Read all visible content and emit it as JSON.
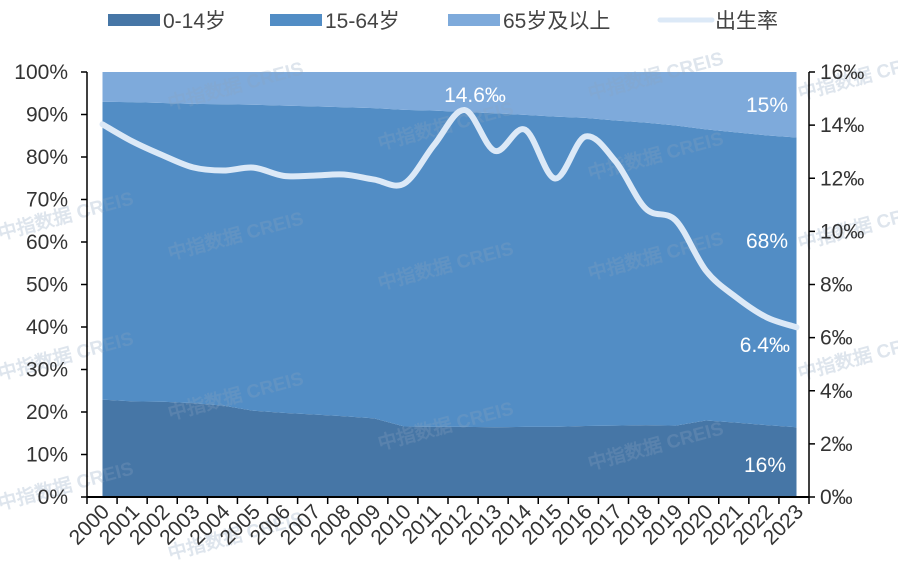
{
  "chart_data": {
    "type": "area",
    "stacked_percent": true,
    "categories": [
      "2000",
      "2001",
      "2002",
      "2003",
      "2004",
      "2005",
      "2006",
      "2007",
      "2008",
      "2009",
      "2010",
      "2011",
      "2012",
      "2013",
      "2014",
      "2015",
      "2016",
      "2017",
      "2018",
      "2019",
      "2020",
      "2021",
      "2022",
      "2023"
    ],
    "series": [
      {
        "name": "0-14岁",
        "type": "area",
        "axis": "left",
        "color": "#4676a6",
        "values": [
          22.9,
          22.5,
          22.4,
          22.1,
          21.5,
          20.3,
          19.8,
          19.4,
          19.0,
          18.5,
          16.6,
          16.5,
          16.5,
          16.4,
          16.5,
          16.5,
          16.7,
          16.8,
          16.9,
          16.8,
          18.0,
          17.5,
          16.9,
          16.4
        ]
      },
      {
        "name": "15-64岁",
        "type": "area",
        "axis": "left",
        "color": "#528dc5",
        "values": [
          70.1,
          70.4,
          70.3,
          70.4,
          70.9,
          72.0,
          72.3,
          72.5,
          72.7,
          73.0,
          74.5,
          74.4,
          74.1,
          73.9,
          73.4,
          73.0,
          72.5,
          71.8,
          71.2,
          70.6,
          68.5,
          68.3,
          68.2,
          68.2
        ]
      },
      {
        "name": "65岁及以上",
        "type": "area",
        "axis": "left",
        "color": "#7eaadb",
        "values": [
          7.0,
          7.1,
          7.3,
          7.5,
          7.6,
          7.7,
          7.9,
          8.1,
          8.3,
          8.5,
          8.9,
          9.1,
          9.4,
          9.7,
          10.1,
          10.5,
          10.8,
          11.4,
          11.9,
          12.6,
          13.5,
          14.2,
          14.9,
          15.4
        ]
      },
      {
        "name": "出生率",
        "type": "line",
        "axis": "right",
        "color": "#dce9f7",
        "values": [
          14.03,
          13.38,
          12.86,
          12.41,
          12.29,
          12.4,
          12.09,
          12.1,
          12.14,
          11.95,
          11.8,
          13.27,
          14.57,
          13.03,
          13.83,
          11.99,
          13.57,
          12.64,
          10.86,
          10.41,
          8.52,
          7.52,
          6.77,
          6.39
        ]
      }
    ],
    "y_left": {
      "min": 0,
      "max": 100,
      "ticks": [
        "0%",
        "10%",
        "20%",
        "30%",
        "40%",
        "50%",
        "60%",
        "70%",
        "80%",
        "90%",
        "100%"
      ]
    },
    "y_right": {
      "min": 0,
      "max": 16,
      "ticks": [
        "0‰",
        "2‰",
        "4‰",
        "6‰",
        "8‰",
        "10‰",
        "12‰",
        "14‰",
        "16‰"
      ]
    },
    "data_labels": {
      "peak": "14.6‰",
      "old_2023": "15%",
      "work_2023": "68%",
      "birth_2023": "6.4‰",
      "young_2023": "16%"
    },
    "legend_position": "top",
    "grid": false,
    "watermark": "中指数据 CREIS"
  }
}
